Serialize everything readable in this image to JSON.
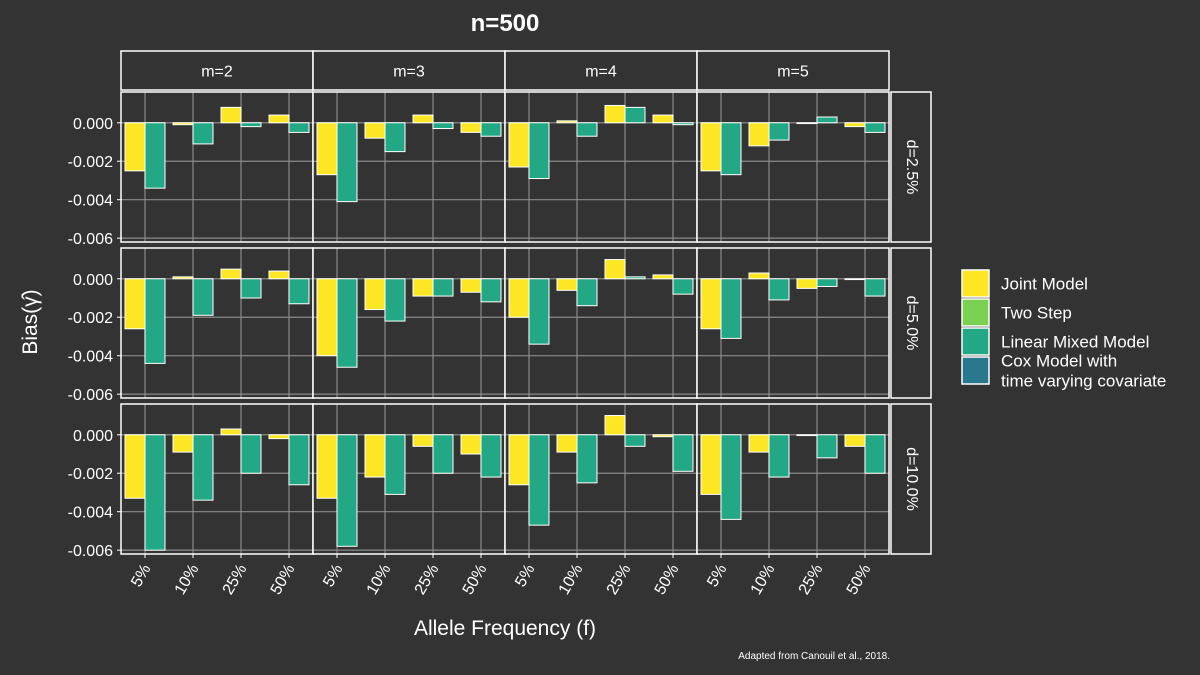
{
  "chart_data": {
    "type": "bar",
    "title": "n=500",
    "xlabel": "Allele Frequency (f)",
    "ylabel": "Bias(γ̂)",
    "caption": "Adapted from Canouil et al., 2018.",
    "ylim": [
      -0.0062,
      0.0016
    ],
    "yticks": [
      "0.000",
      "-0.002",
      "-0.004",
      "-0.006"
    ],
    "ytick_values": [
      0,
      -0.002,
      -0.004,
      -0.006
    ],
    "categories": [
      "5%",
      "10%",
      "25%",
      "50%"
    ],
    "facet_cols": [
      "m=2",
      "m=3",
      "m=4",
      "m=5"
    ],
    "facet_rows": [
      "d=2.5%",
      "d=5.0%",
      "d=10.0%"
    ],
    "legend": {
      "position": "right",
      "entries": [
        {
          "label": "Joint Model",
          "color": "#FDE725"
        },
        {
          "label": "Two Step",
          "color": "#7AD151"
        },
        {
          "label": "Linear Mixed Model",
          "color": "#22A884"
        },
        {
          "label": "Cox Model with\ntime varying covariate",
          "color": "#2A788E"
        }
      ]
    },
    "grid": true,
    "panels": [
      [
        {
          "joint": [
            -0.0025,
            -0.0001,
            0.0008,
            0.0004
          ],
          "lmm": [
            -0.0034,
            -0.0011,
            -0.0002,
            -0.0005
          ]
        },
        {
          "joint": [
            -0.0027,
            -0.0008,
            0.0004,
            -0.0005
          ],
          "lmm": [
            -0.0041,
            -0.0015,
            -0.0003,
            -0.0007
          ]
        },
        {
          "joint": [
            -0.0023,
            0.0001,
            0.0009,
            0.0004
          ],
          "lmm": [
            -0.0029,
            -0.0007,
            0.0008,
            -0.0001
          ]
        },
        {
          "joint": [
            -0.0025,
            -0.0012,
            0.0,
            -0.0002
          ],
          "lmm": [
            -0.0027,
            -0.0009,
            0.0003,
            -0.0005
          ]
        }
      ],
      [
        {
          "joint": [
            -0.0026,
            0.0001,
            0.0005,
            0.0004
          ],
          "lmm": [
            -0.0044,
            -0.0019,
            -0.001,
            -0.0013
          ]
        },
        {
          "joint": [
            -0.004,
            -0.0016,
            -0.0009,
            -0.0007
          ],
          "lmm": [
            -0.0046,
            -0.0022,
            -0.0009,
            -0.0012
          ]
        },
        {
          "joint": [
            -0.002,
            -0.0006,
            0.001,
            0.0002
          ],
          "lmm": [
            -0.0034,
            -0.0014,
            0.0001,
            -0.0008
          ]
        },
        {
          "joint": [
            -0.0026,
            0.0003,
            -0.0005,
            0.0
          ],
          "lmm": [
            -0.0031,
            -0.0011,
            -0.0004,
            -0.0009
          ]
        }
      ],
      [
        {
          "joint": [
            -0.0033,
            -0.0009,
            0.0003,
            -0.0002
          ],
          "lmm": [
            -0.006,
            -0.0034,
            -0.002,
            -0.0026
          ]
        },
        {
          "joint": [
            -0.0033,
            -0.0022,
            -0.0006,
            -0.001
          ],
          "lmm": [
            -0.0058,
            -0.0031,
            -0.002,
            -0.0022
          ]
        },
        {
          "joint": [
            -0.0026,
            -0.0009,
            0.001,
            -0.0001
          ],
          "lmm": [
            -0.0047,
            -0.0025,
            -0.0006,
            -0.0019
          ]
        },
        {
          "joint": [
            -0.0031,
            -0.0009,
            0.0,
            -0.0006
          ],
          "lmm": [
            -0.0044,
            -0.0022,
            -0.0012,
            -0.002
          ]
        }
      ]
    ]
  }
}
